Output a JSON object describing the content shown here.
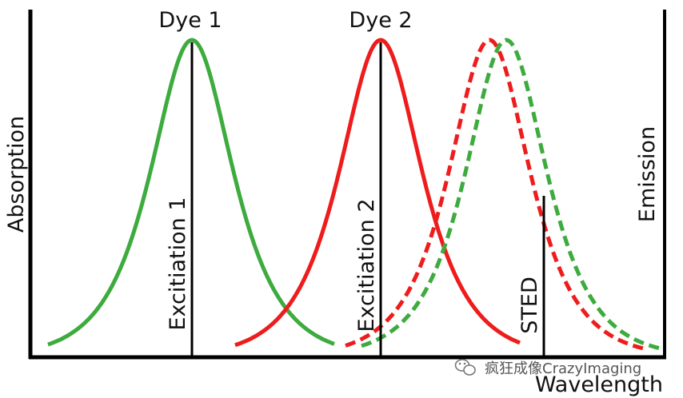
{
  "labels": {
    "dye1": "Dye 1",
    "dye2": "Dye 2",
    "y_left": "Absorption",
    "y_right": "Emission",
    "x": "Wavelength",
    "excitation1": "Excitiation 1",
    "excitation2": "Excitiation 2",
    "sted": "STED"
  },
  "watermark": {
    "text": "疯狂成像CrazyImaging",
    "icon": "wechat-icon"
  },
  "colors": {
    "dye1": "#3dab3d",
    "dye2": "#ee1c1c",
    "axis": "#000000"
  }
}
